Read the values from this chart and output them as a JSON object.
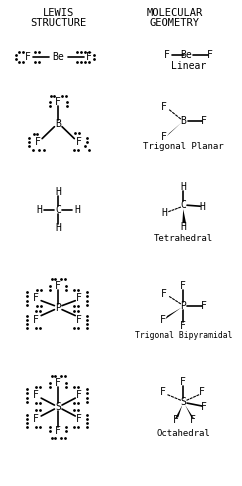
{
  "title_left_1": "LEWIS",
  "title_left_2": "STRUCTURE",
  "title_right_1": "MOLECULAR",
  "title_right_2": "GEOMETRY",
  "background": "#ffffff"
}
